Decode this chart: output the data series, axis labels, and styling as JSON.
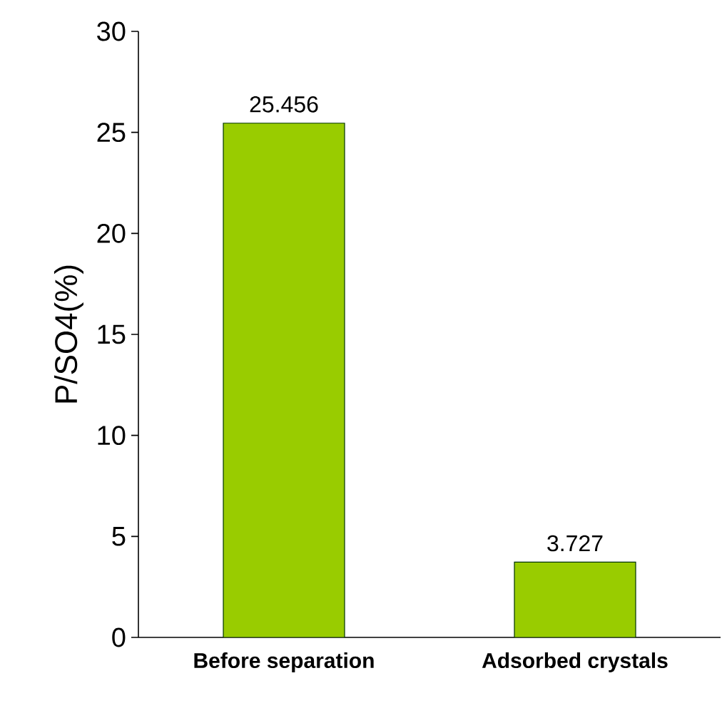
{
  "chart_data": {
    "type": "bar",
    "ylabel": "P/SO4(%)",
    "categories": [
      "Before separation",
      "Adsorbed crystals"
    ],
    "values": [
      25.456,
      3.727
    ],
    "color": "#99cc00",
    "ylim": [
      0,
      30
    ],
    "yticks": [
      0,
      5,
      10,
      15,
      20,
      25,
      30
    ],
    "data_labels": true,
    "grid": false
  }
}
